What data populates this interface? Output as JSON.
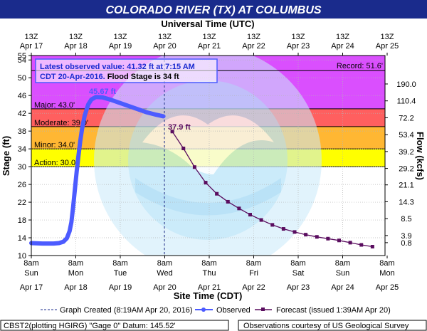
{
  "chart_data": {
    "type": "line",
    "title": "COLORADO RIVER (TX) AT COLUMBUS",
    "top_axis_title": "Universal Time (UTC)",
    "bottom_axis_title": "Site Time (CDT)",
    "ylabel": "Stage (ft)",
    "ylabel_right": "Flow (kcfs)",
    "ylim": [
      10,
      55
    ],
    "y_ticks": [
      "10",
      "14",
      "18",
      "22",
      "26",
      "30",
      "34",
      "38",
      "42",
      "46",
      "50",
      "54",
      "55"
    ],
    "flow_ticks": [
      {
        "stage": 12.9,
        "label": "0.8"
      },
      {
        "stage": 14.5,
        "label": "3.9"
      },
      {
        "stage": 18.3,
        "label": "8.5"
      },
      {
        "stage": 22.1,
        "label": "14.3"
      },
      {
        "stage": 25.9,
        "label": "21.1"
      },
      {
        "stage": 29.6,
        "label": "29.2"
      },
      {
        "stage": 33.4,
        "label": "39.2"
      },
      {
        "stage": 37.2,
        "label": "53.4"
      },
      {
        "stage": 41.0,
        "label": "72.2"
      },
      {
        "stage": 44.8,
        "label": "110.4"
      },
      {
        "stage": 48.6,
        "label": "190.0"
      }
    ],
    "top_ticks": [
      {
        "l1": "13Z",
        "l2": "Apr 17"
      },
      {
        "l1": "13Z",
        "l2": "Apr 18"
      },
      {
        "l1": "13Z",
        "l2": "Apr 19"
      },
      {
        "l1": "13Z",
        "l2": "Apr 20"
      },
      {
        "l1": "13Z",
        "l2": "Apr 21"
      },
      {
        "l1": "13Z",
        "l2": "Apr 22"
      },
      {
        "l1": "13Z",
        "l2": "Apr 23"
      },
      {
        "l1": "13Z",
        "l2": "Apr 24"
      },
      {
        "l1": "13Z",
        "l2": "Apr 25"
      }
    ],
    "bottom_ticks": [
      {
        "l1": "8am",
        "l2": "Sun",
        "l3": "Apr 17"
      },
      {
        "l1": "8am",
        "l2": "Mon",
        "l3": "Apr 18"
      },
      {
        "l1": "8am",
        "l2": "Tue",
        "l3": "Apr 19"
      },
      {
        "l1": "8am",
        "l2": "Wed",
        "l3": "Apr 20"
      },
      {
        "l1": "8am",
        "l2": "Thu",
        "l3": "Apr 21"
      },
      {
        "l1": "8am",
        "l2": "Fri",
        "l3": "Apr 22"
      },
      {
        "l1": "8am",
        "l2": "Sat",
        "l3": "Apr 23"
      },
      {
        "l1": "8am",
        "l2": "Sun",
        "l3": "Apr 24"
      },
      {
        "l1": "8am",
        "l2": "Mon",
        "l3": "Apr 25"
      }
    ],
    "flood_categories": [
      {
        "name": "Action",
        "label": "Action: 30.0'",
        "from": 30,
        "to": 34,
        "color": "#ffff00"
      },
      {
        "name": "Minor",
        "label": "Minor: 34.0'",
        "from": 34,
        "to": 39,
        "color": "#ffb733"
      },
      {
        "name": "Moderate",
        "label": "Moderate: 39.0'",
        "from": 39,
        "to": 43,
        "color": "#ff5f5f"
      },
      {
        "name": "Major",
        "label": "Major: 43.0'",
        "from": 43,
        "to": 55,
        "color": "#da4ffe"
      }
    ],
    "record": {
      "label": "Record: 51.6'",
      "value": 51.6
    },
    "peak_label": "45.67 ft",
    "forecast_label": "37.9 ft",
    "observed_color": "#4c5bff",
    "forecast_color": "#5a0d5f",
    "latest_note": {
      "line1": "Latest observed value: 41.32 ft at 7:15 AM",
      "line2_a": "CDT 20-Apr-2016.",
      "line2_b": " Flood Stage is 34 ft"
    },
    "series": [
      {
        "name": "Observed",
        "x_days": [
          0.0,
          0.25,
          0.5,
          0.62,
          0.72,
          0.8,
          0.86,
          0.9,
          0.94,
          0.98,
          1.02,
          1.06,
          1.1,
          1.14,
          1.2,
          1.28,
          1.35,
          1.45,
          1.6,
          1.8,
          2.0,
          2.2,
          2.4,
          2.6,
          2.8,
          2.97
        ],
        "values": [
          12.8,
          12.7,
          12.7,
          12.8,
          13.1,
          13.9,
          15.5,
          17.5,
          21.0,
          25.0,
          29.0,
          32.5,
          35.8,
          38.5,
          41.5,
          44.0,
          45.1,
          45.67,
          45.6,
          45.0,
          44.3,
          43.6,
          42.9,
          42.2,
          41.7,
          41.32
        ]
      },
      {
        "name": "Forecast",
        "x_days": [
          3.17,
          3.42,
          3.67,
          3.92,
          4.17,
          4.42,
          4.67,
          4.92,
          5.17,
          5.42,
          5.67,
          5.92,
          6.17,
          6.42,
          6.67,
          6.92,
          7.17,
          7.42,
          7.67
        ],
        "values": [
          37.9,
          34.1,
          29.9,
          26.4,
          23.9,
          22.1,
          20.6,
          19.2,
          18.0,
          16.9,
          16.0,
          15.3,
          14.7,
          14.2,
          13.8,
          13.4,
          12.9,
          12.4,
          12.0
        ]
      }
    ],
    "legend": {
      "graph_created": "Graph Created (8:19AM Apr 20, 2016)",
      "observed": "Observed",
      "forecast": "Forecast (issued 1:39AM Apr 20)"
    },
    "footer": {
      "left": "CBST2(plotting HGIRG) \"Gage 0\" Datum: 145.52'",
      "right": "Observations courtesy of US Geological Survey"
    }
  }
}
